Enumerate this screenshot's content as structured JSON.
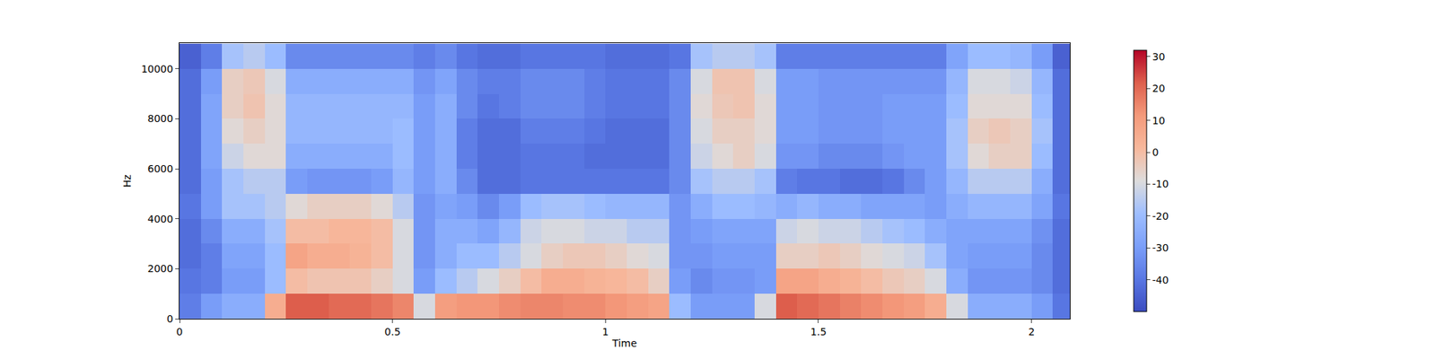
{
  "chart_data": {
    "type": "heatmap",
    "x_label": "Time",
    "y_label": "Hz",
    "x": [
      0.025,
      0.075,
      0.125,
      0.175,
      0.225,
      0.275,
      0.325,
      0.375,
      0.425,
      0.475,
      0.525,
      0.575,
      0.625,
      0.675,
      0.725,
      0.775,
      0.825,
      0.875,
      0.925,
      0.975,
      1.025,
      1.075,
      1.125,
      1.175,
      1.225,
      1.275,
      1.325,
      1.375,
      1.425,
      1.475,
      1.525,
      1.575,
      1.625,
      1.675,
      1.725,
      1.775,
      1.825,
      1.875,
      1.925,
      1.975,
      2.025,
      2.075
    ],
    "y": [
      500,
      1500,
      2500,
      3500,
      4500,
      5500,
      6500,
      7500,
      8500,
      9500,
      10500
    ],
    "z": [
      [
        -38,
        -30,
        -25,
        -25,
        5,
        22,
        22,
        20,
        20,
        18,
        15,
        -10,
        10,
        12,
        12,
        14,
        15,
        15,
        14,
        14,
        12,
        10,
        8,
        -20,
        -30,
        -30,
        -30,
        -10,
        22,
        20,
        18,
        16,
        14,
        12,
        10,
        5,
        -10,
        -25,
        -25,
        -25,
        -30,
        -40
      ],
      [
        -40,
        -38,
        -30,
        -30,
        -20,
        0,
        -2,
        -2,
        -2,
        -5,
        -10,
        -30,
        -20,
        -15,
        -10,
        -5,
        0,
        5,
        5,
        3,
        2,
        0,
        -5,
        -30,
        -35,
        -32,
        -32,
        -30,
        8,
        8,
        5,
        3,
        0,
        -3,
        -5,
        -10,
        -25,
        -32,
        -32,
        -32,
        -35,
        -42
      ],
      [
        -42,
        -38,
        -28,
        -28,
        -20,
        8,
        5,
        5,
        3,
        0,
        -10,
        -32,
        -25,
        -20,
        -20,
        -15,
        -10,
        -5,
        -3,
        -3,
        -5,
        -8,
        -10,
        -32,
        -32,
        -30,
        -30,
        -30,
        -5,
        -5,
        -3,
        -5,
        -8,
        -10,
        -12,
        -18,
        -28,
        -30,
        -30,
        -30,
        -35,
        -42
      ],
      [
        -42,
        -35,
        -25,
        -25,
        -18,
        0,
        0,
        2,
        2,
        0,
        -10,
        -32,
        -25,
        -25,
        -28,
        -22,
        -12,
        -10,
        -10,
        -12,
        -12,
        -15,
        -15,
        -32,
        -30,
        -28,
        -28,
        -28,
        -12,
        -10,
        -12,
        -12,
        -15,
        -18,
        -20,
        -25,
        -28,
        -28,
        -28,
        -28,
        -33,
        -42
      ],
      [
        -40,
        -30,
        -18,
        -18,
        -15,
        -8,
        -5,
        -5,
        -5,
        -8,
        -15,
        -32,
        -28,
        -30,
        -35,
        -30,
        -20,
        -18,
        -18,
        -20,
        -22,
        -22,
        -22,
        -32,
        -25,
        -20,
        -20,
        -22,
        -25,
        -22,
        -25,
        -25,
        -28,
        -28,
        -28,
        -30,
        -25,
        -22,
        -22,
        -22,
        -28,
        -40
      ],
      [
        -42,
        -30,
        -18,
        -15,
        -15,
        -30,
        -32,
        -32,
        -32,
        -30,
        -22,
        -30,
        -25,
        -35,
        -42,
        -42,
        -40,
        -40,
        -40,
        -40,
        -40,
        -40,
        -40,
        -35,
        -18,
        -15,
        -15,
        -18,
        -38,
        -40,
        -40,
        -42,
        -42,
        -40,
        -35,
        -30,
        -22,
        -15,
        -15,
        -15,
        -25,
        -42
      ],
      [
        -42,
        -28,
        -12,
        -8,
        -8,
        -25,
        -25,
        -25,
        -25,
        -25,
        -20,
        -30,
        -25,
        -38,
        -42,
        -42,
        -40,
        -40,
        -40,
        -42,
        -42,
        -42,
        -42,
        -35,
        -12,
        -8,
        -5,
        -10,
        -32,
        -32,
        -35,
        -35,
        -35,
        -32,
        -30,
        -30,
        -18,
        -8,
        -5,
        -5,
        -20,
        -42
      ],
      [
        -42,
        -28,
        -8,
        -5,
        -8,
        -22,
        -22,
        -22,
        -22,
        -22,
        -20,
        -30,
        -25,
        -38,
        -42,
        -42,
        -38,
        -38,
        -38,
        -40,
        -42,
        -42,
        -42,
        -35,
        -10,
        -5,
        -5,
        -8,
        -30,
        -30,
        -32,
        -32,
        -32,
        -30,
        -30,
        -30,
        -18,
        -5,
        -3,
        -5,
        -18,
        -42
      ],
      [
        -42,
        -28,
        -5,
        -2,
        -8,
        -22,
        -22,
        -22,
        -22,
        -22,
        -22,
        -30,
        -25,
        -35,
        -40,
        -38,
        -35,
        -35,
        -35,
        -38,
        -40,
        -40,
        -40,
        -35,
        -8,
        -3,
        -2,
        -8,
        -30,
        -30,
        -32,
        -32,
        -32,
        -30,
        -30,
        -30,
        -20,
        -8,
        -8,
        -8,
        -20,
        -42
      ],
      [
        -42,
        -30,
        -5,
        -3,
        -10,
        -25,
        -25,
        -25,
        -25,
        -25,
        -25,
        -32,
        -28,
        -35,
        -38,
        -38,
        -35,
        -35,
        -35,
        -38,
        -40,
        -40,
        -40,
        -35,
        -10,
        -2,
        -2,
        -10,
        -30,
        -30,
        -32,
        -32,
        -32,
        -32,
        -32,
        -32,
        -22,
        -10,
        -10,
        -12,
        -22,
        -42
      ],
      [
        -45,
        -38,
        -18,
        -15,
        -20,
        -35,
        -35,
        -35,
        -35,
        -35,
        -35,
        -38,
        -35,
        -40,
        -42,
        -42,
        -40,
        -40,
        -40,
        -40,
        -42,
        -42,
        -42,
        -40,
        -18,
        -15,
        -15,
        -18,
        -38,
        -38,
        -38,
        -38,
        -38,
        -38,
        -38,
        -38,
        -28,
        -20,
        -20,
        -22,
        -30,
        -45
      ]
    ],
    "xlim": [
      0,
      2.09
    ],
    "xticks": [
      0,
      0.5,
      1,
      1.5,
      2
    ],
    "ylim": [
      0,
      11025
    ],
    "yticks": [
      0,
      2000,
      4000,
      6000,
      8000,
      10000
    ],
    "colorbar": {
      "range": [
        -50,
        32
      ],
      "ticks": [
        -40,
        -30,
        -20,
        -10,
        0,
        10,
        20,
        30
      ]
    }
  }
}
